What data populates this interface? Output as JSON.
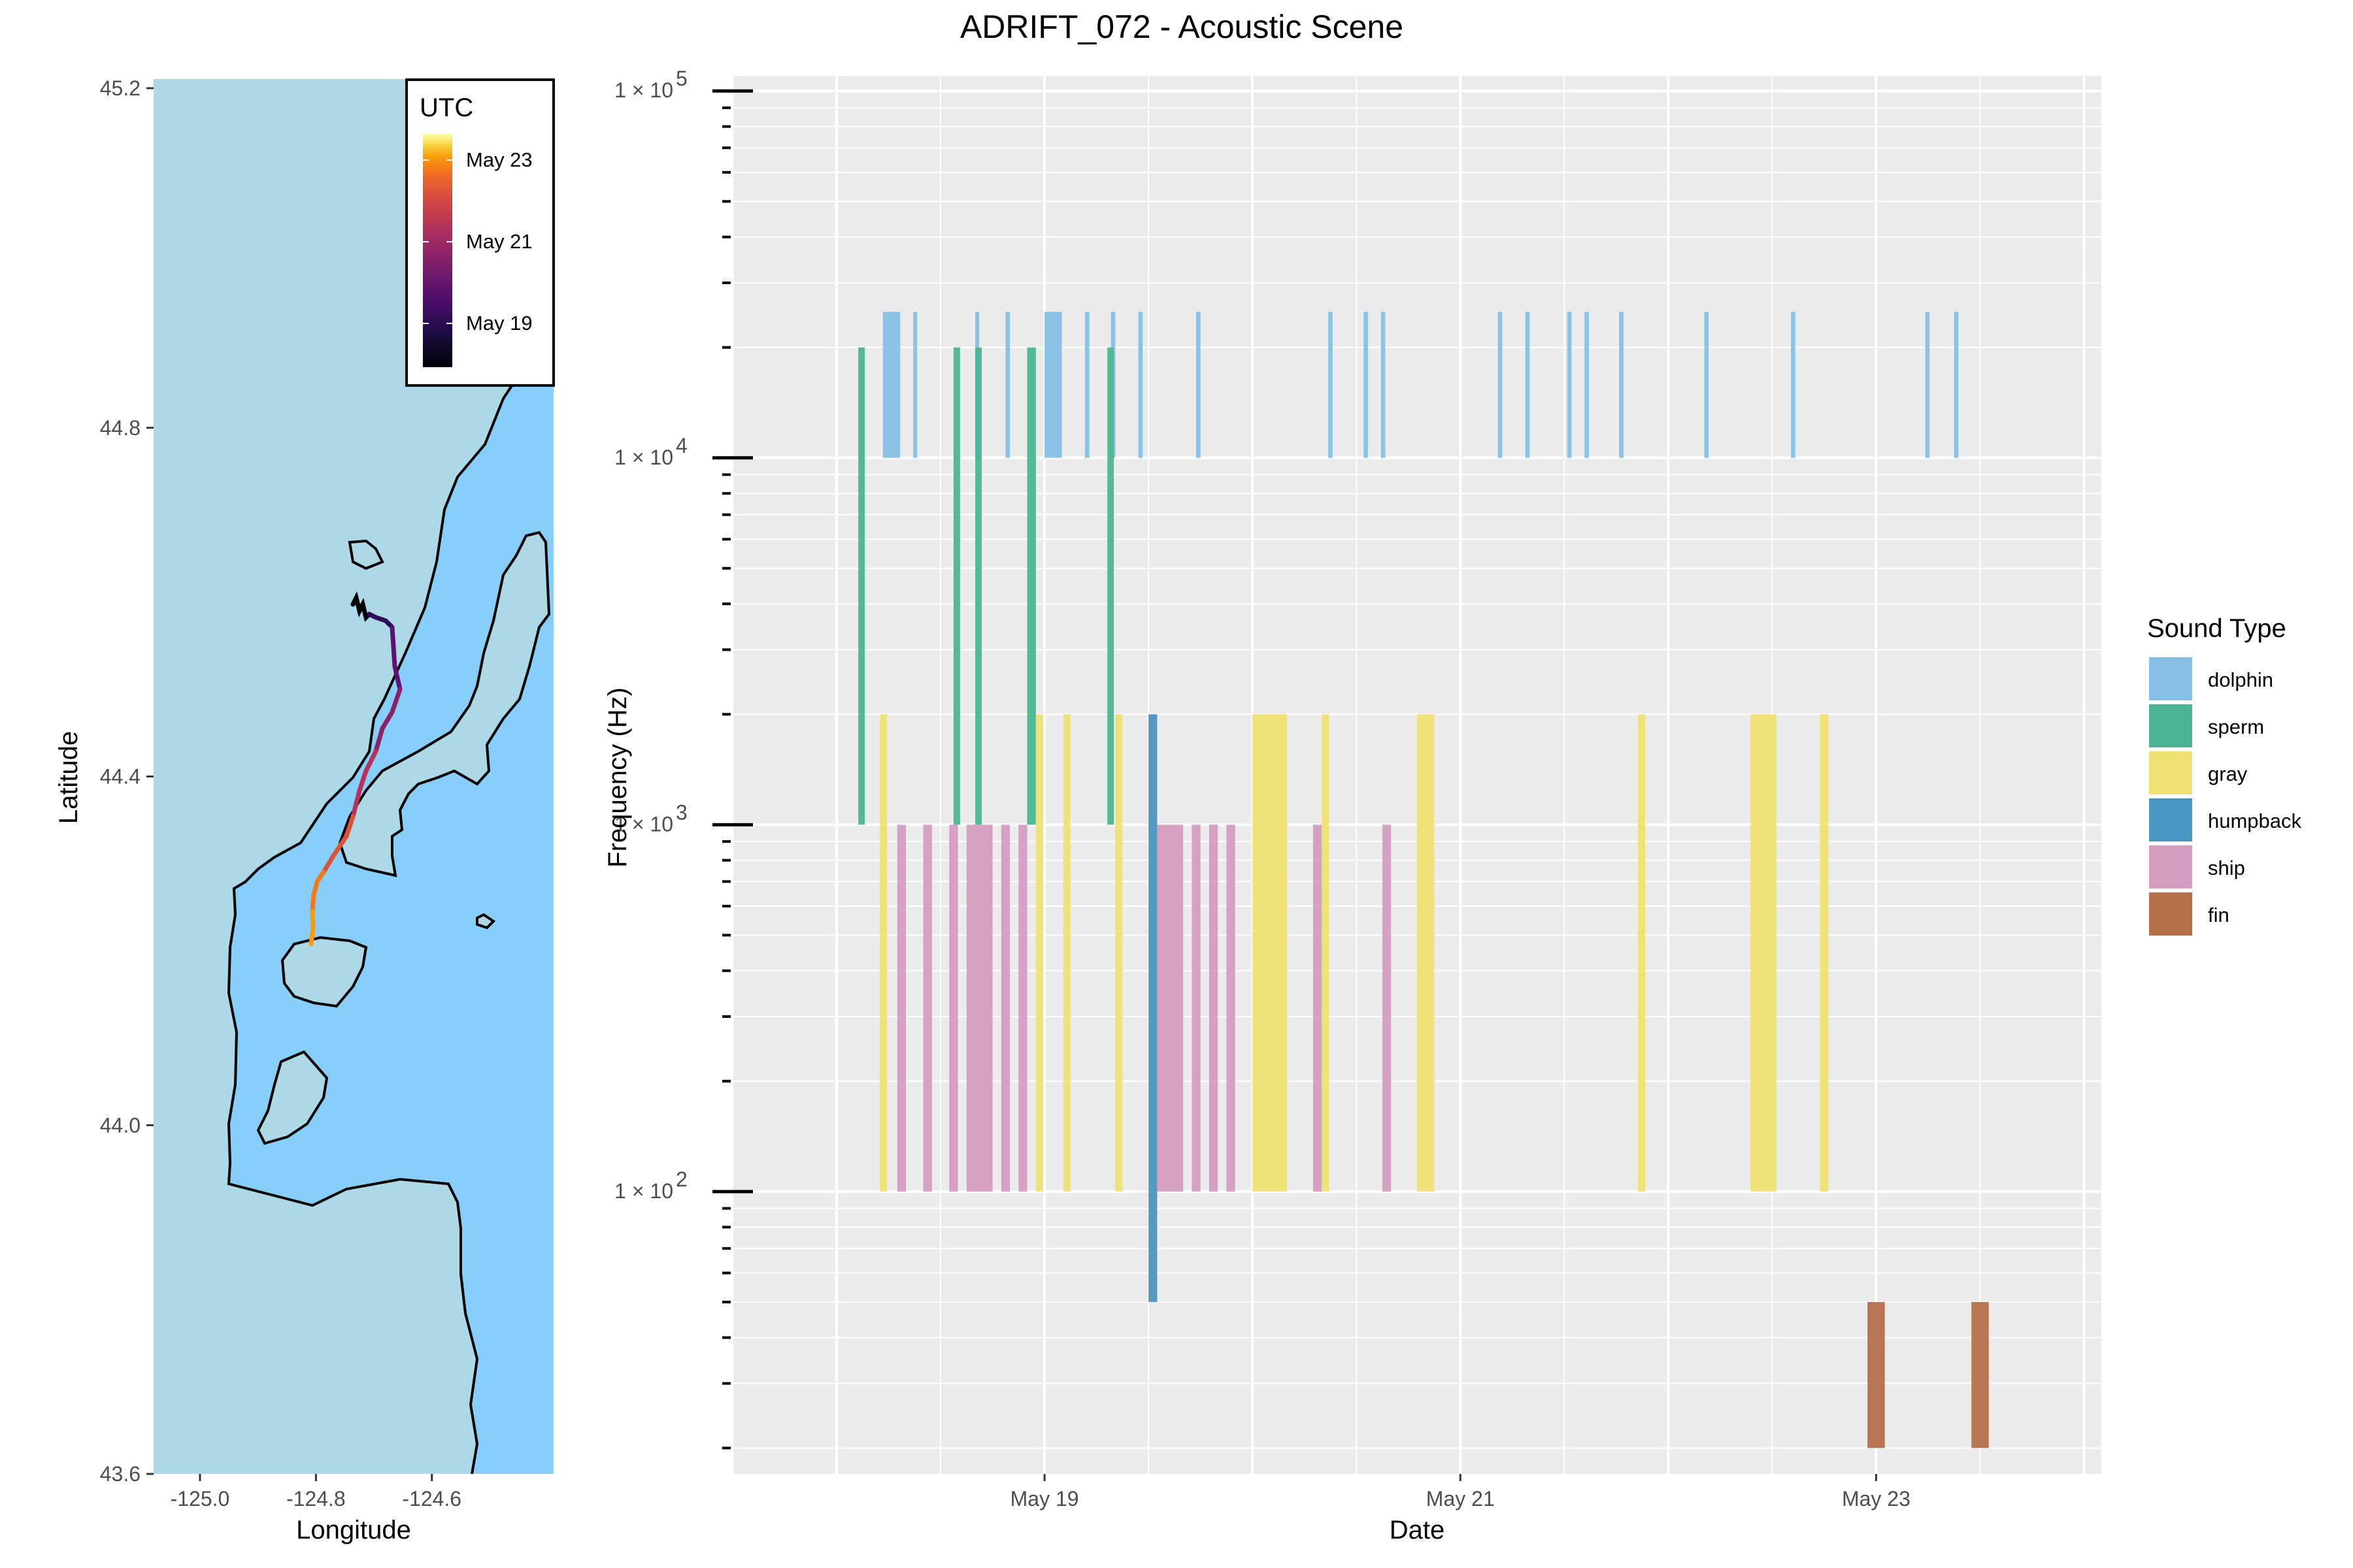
{
  "title": "ADRIFT_072 - Acoustic Scene",
  "colors": {
    "panel_bg": "#EBEBEB",
    "grid": "#FFFFFF",
    "land": "#ADD8E6",
    "water": "#87CEFA",
    "coast": "#000000"
  },
  "map": {
    "xlabel": "Longitude",
    "ylabel": "Latitude",
    "x_ticks": [
      "-125.0",
      "-124.8",
      "-124.6"
    ],
    "x_tick_values": [
      -125.0,
      -124.8,
      -124.6
    ],
    "y_ticks": [
      "43.6",
      "44.0",
      "44.4",
      "44.8",
      "45.2"
    ],
    "y_tick_values": [
      43.6,
      44.0,
      44.4,
      44.8,
      45.2
    ],
    "xlim": [
      -125.08,
      -124.39
    ],
    "ylim": [
      43.6,
      45.2
    ],
    "legend": {
      "title": "UTC",
      "labels": [
        "May 23",
        "May 21",
        "May 19"
      ],
      "colormap": "inferno"
    }
  },
  "chart_data": {
    "type": "bar",
    "title": "ADRIFT_072 - Acoustic Scene",
    "xlabel": "Date",
    "ylabel": "Frequency (Hz)",
    "y_scale": "log10",
    "xlim": [
      "2023-05-17 12:00",
      "2023-05-24 02:00"
    ],
    "ylim": [
      17,
      110000
    ],
    "x_ticks": [
      {
        "label": "May 19",
        "date": "2023-05-19 00:00"
      },
      {
        "label": "May 21",
        "date": "2023-05-21 00:00"
      },
      {
        "label": "May 23",
        "date": "2023-05-23 00:00"
      }
    ],
    "y_ticks": [
      {
        "label": "1 × 10",
        "exp": "2",
        "value": 100
      },
      {
        "label": "1 × 10",
        "exp": "3",
        "value": 1000
      },
      {
        "label": "1 × 10",
        "exp": "4",
        "value": 10000
      },
      {
        "label": "1 × 10",
        "exp": "5",
        "value": 100000
      }
    ],
    "legend": {
      "title": "Sound Type",
      "placement": "right",
      "entries": [
        {
          "name": "dolphin",
          "color": "#85C1E6"
        },
        {
          "name": "sperm",
          "color": "#4CB494"
        },
        {
          "name": "gray",
          "color": "#EFE272"
        },
        {
          "name": "humpback",
          "color": "#4A96C2"
        },
        {
          "name": "ship",
          "color": "#D59DBF"
        },
        {
          "name": "fin",
          "color": "#B5704A"
        }
      ]
    },
    "events": [
      {
        "type": "dolphin",
        "start": "2023-05-18 05:20",
        "end": "2023-05-18 05:50",
        "fmin": 10000,
        "fmax": 25000
      },
      {
        "type": "dolphin",
        "start": "2023-05-18 05:50",
        "end": "2023-05-18 06:20",
        "fmin": 10000,
        "fmax": 25000
      },
      {
        "type": "dolphin",
        "start": "2023-05-18 06:20",
        "end": "2023-05-18 06:50",
        "fmin": 10000,
        "fmax": 25000
      },
      {
        "type": "dolphin",
        "start": "2023-05-18 06:50",
        "end": "2023-05-18 07:20",
        "fmin": 10000,
        "fmax": 25000
      },
      {
        "type": "dolphin",
        "start": "2023-05-18 08:50",
        "end": "2023-05-18 09:15",
        "fmin": 10000,
        "fmax": 25000
      },
      {
        "type": "dolphin",
        "start": "2023-05-18 16:00",
        "end": "2023-05-18 16:25",
        "fmin": 10000,
        "fmax": 25000
      },
      {
        "type": "dolphin",
        "start": "2023-05-18 19:30",
        "end": "2023-05-18 20:00",
        "fmin": 10000,
        "fmax": 25000
      },
      {
        "type": "dolphin",
        "start": "2023-05-19 00:00",
        "end": "2023-05-19 02:00",
        "fmin": 10000,
        "fmax": 25000
      },
      {
        "type": "dolphin",
        "start": "2023-05-19 04:40",
        "end": "2023-05-19 05:10",
        "fmin": 10000,
        "fmax": 25000
      },
      {
        "type": "dolphin",
        "start": "2023-05-19 07:40",
        "end": "2023-05-19 08:10",
        "fmin": 10000,
        "fmax": 25000
      },
      {
        "type": "dolphin",
        "start": "2023-05-19 10:50",
        "end": "2023-05-19 11:20",
        "fmin": 10000,
        "fmax": 25000
      },
      {
        "type": "dolphin",
        "start": "2023-05-19 17:30",
        "end": "2023-05-19 18:00",
        "fmin": 10000,
        "fmax": 25000
      },
      {
        "type": "dolphin",
        "start": "2023-05-20 08:45",
        "end": "2023-05-20 09:15",
        "fmin": 10000,
        "fmax": 25000
      },
      {
        "type": "dolphin",
        "start": "2023-05-20 12:50",
        "end": "2023-05-20 13:20",
        "fmin": 10000,
        "fmax": 25000
      },
      {
        "type": "dolphin",
        "start": "2023-05-20 14:50",
        "end": "2023-05-20 15:20",
        "fmin": 10000,
        "fmax": 25000
      },
      {
        "type": "dolphin",
        "start": "2023-05-21 04:20",
        "end": "2023-05-21 04:50",
        "fmin": 10000,
        "fmax": 25000
      },
      {
        "type": "dolphin",
        "start": "2023-05-21 07:30",
        "end": "2023-05-21 08:00",
        "fmin": 10000,
        "fmax": 25000
      },
      {
        "type": "dolphin",
        "start": "2023-05-21 12:20",
        "end": "2023-05-21 12:50",
        "fmin": 10000,
        "fmax": 25000
      },
      {
        "type": "dolphin",
        "start": "2023-05-21 14:20",
        "end": "2023-05-21 14:50",
        "fmin": 10000,
        "fmax": 25000
      },
      {
        "type": "dolphin",
        "start": "2023-05-21 18:20",
        "end": "2023-05-21 18:50",
        "fmin": 10000,
        "fmax": 25000
      },
      {
        "type": "dolphin",
        "start": "2023-05-22 04:10",
        "end": "2023-05-22 04:40",
        "fmin": 10000,
        "fmax": 25000
      },
      {
        "type": "dolphin",
        "start": "2023-05-22 14:10",
        "end": "2023-05-22 14:40",
        "fmin": 10000,
        "fmax": 25000
      },
      {
        "type": "dolphin",
        "start": "2023-05-23 05:40",
        "end": "2023-05-23 06:10",
        "fmin": 10000,
        "fmax": 25000
      },
      {
        "type": "dolphin",
        "start": "2023-05-23 09:00",
        "end": "2023-05-23 09:30",
        "fmin": 10000,
        "fmax": 25000
      },
      {
        "type": "sperm",
        "start": "2023-05-18 02:30",
        "end": "2023-05-18 03:15",
        "fmin": 1000,
        "fmax": 20000
      },
      {
        "type": "sperm",
        "start": "2023-05-18 13:30",
        "end": "2023-05-18 14:15",
        "fmin": 1000,
        "fmax": 20000
      },
      {
        "type": "sperm",
        "start": "2023-05-18 16:00",
        "end": "2023-05-18 16:45",
        "fmin": 1000,
        "fmax": 20000
      },
      {
        "type": "sperm",
        "start": "2023-05-18 22:00",
        "end": "2023-05-18 23:00",
        "fmin": 1000,
        "fmax": 20000
      },
      {
        "type": "sperm",
        "start": "2023-05-19 07:15",
        "end": "2023-05-19 08:00",
        "fmin": 1000,
        "fmax": 20000
      },
      {
        "type": "gray",
        "start": "2023-05-18 05:00",
        "end": "2023-05-18 05:50",
        "fmin": 100,
        "fmax": 2000
      },
      {
        "type": "gray",
        "start": "2023-05-18 23:00",
        "end": "2023-05-18 23:50",
        "fmin": 100,
        "fmax": 2000
      },
      {
        "type": "gray",
        "start": "2023-05-19 02:10",
        "end": "2023-05-19 03:00",
        "fmin": 100,
        "fmax": 2000
      },
      {
        "type": "gray",
        "start": "2023-05-19 08:10",
        "end": "2023-05-19 09:00",
        "fmin": 100,
        "fmax": 2000
      },
      {
        "type": "gray",
        "start": "2023-05-20 00:00",
        "end": "2023-05-20 04:00",
        "fmin": 100,
        "fmax": 2000
      },
      {
        "type": "gray",
        "start": "2023-05-20 08:00",
        "end": "2023-05-20 08:50",
        "fmin": 100,
        "fmax": 2000
      },
      {
        "type": "gray",
        "start": "2023-05-20 19:00",
        "end": "2023-05-20 21:00",
        "fmin": 100,
        "fmax": 2000
      },
      {
        "type": "gray",
        "start": "2023-05-21 20:30",
        "end": "2023-05-21 21:20",
        "fmin": 100,
        "fmax": 2000
      },
      {
        "type": "gray",
        "start": "2023-05-22 09:30",
        "end": "2023-05-22 12:30",
        "fmin": 100,
        "fmax": 2000
      },
      {
        "type": "gray",
        "start": "2023-05-22 17:30",
        "end": "2023-05-22 18:30",
        "fmin": 100,
        "fmax": 2000
      },
      {
        "type": "humpback",
        "start": "2023-05-19 12:00",
        "end": "2023-05-19 13:00",
        "fmin": 50,
        "fmax": 2000
      },
      {
        "type": "ship",
        "start": "2023-05-18 07:00",
        "end": "2023-05-18 08:00",
        "fmin": 100,
        "fmax": 1000
      },
      {
        "type": "ship",
        "start": "2023-05-18 10:00",
        "end": "2023-05-18 11:00",
        "fmin": 100,
        "fmax": 1000
      },
      {
        "type": "ship",
        "start": "2023-05-18 13:00",
        "end": "2023-05-18 14:00",
        "fmin": 100,
        "fmax": 1000
      },
      {
        "type": "ship",
        "start": "2023-05-18 15:00",
        "end": "2023-05-18 18:00",
        "fmin": 100,
        "fmax": 1000
      },
      {
        "type": "ship",
        "start": "2023-05-18 19:00",
        "end": "2023-05-18 20:00",
        "fmin": 100,
        "fmax": 1000
      },
      {
        "type": "ship",
        "start": "2023-05-18 21:00",
        "end": "2023-05-18 22:00",
        "fmin": 100,
        "fmax": 1000
      },
      {
        "type": "ship",
        "start": "2023-05-19 13:00",
        "end": "2023-05-19 16:00",
        "fmin": 100,
        "fmax": 1000
      },
      {
        "type": "ship",
        "start": "2023-05-19 17:00",
        "end": "2023-05-19 18:00",
        "fmin": 100,
        "fmax": 1000
      },
      {
        "type": "ship",
        "start": "2023-05-19 19:00",
        "end": "2023-05-19 20:00",
        "fmin": 100,
        "fmax": 1000
      },
      {
        "type": "ship",
        "start": "2023-05-19 21:00",
        "end": "2023-05-19 22:00",
        "fmin": 100,
        "fmax": 1000
      },
      {
        "type": "ship",
        "start": "2023-05-20 07:00",
        "end": "2023-05-20 08:00",
        "fmin": 100,
        "fmax": 1000
      },
      {
        "type": "ship",
        "start": "2023-05-20 15:00",
        "end": "2023-05-20 16:00",
        "fmin": 100,
        "fmax": 1000
      },
      {
        "type": "fin",
        "start": "2023-05-22 23:00",
        "end": "2023-05-23 01:00",
        "fmin": 20,
        "fmax": 50
      },
      {
        "type": "fin",
        "start": "2023-05-23 11:00",
        "end": "2023-05-23 13:00",
        "fmin": 20,
        "fmax": 50
      }
    ]
  }
}
